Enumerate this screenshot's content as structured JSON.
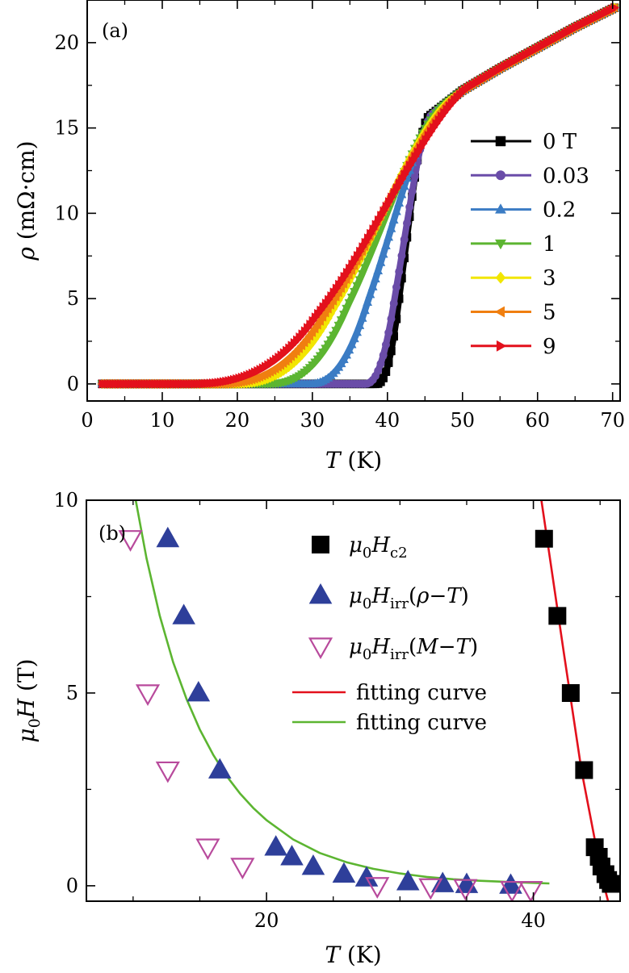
{
  "figure": {
    "panel_a_label": "(a)",
    "panel_b_label": "(b)"
  },
  "chart_data": [
    {
      "type": "line",
      "panel": "(a)",
      "xlabel": "T (K)",
      "ylabel": "ρ (mΩ·cm)",
      "xlim": [
        0,
        71
      ],
      "ylim": [
        -1,
        22.5
      ],
      "xticks": [
        0,
        10,
        20,
        30,
        40,
        50,
        60,
        70
      ],
      "yticks": [
        0,
        5,
        10,
        15,
        20
      ],
      "legend_position": "right",
      "normal_state": {
        "T": [
          45,
          50,
          55,
          60,
          65,
          70.5
        ],
        "rho": [
          15.5,
          17.2,
          18.5,
          19.7,
          20.9,
          22.1
        ]
      },
      "series": [
        {
          "name": "0 T",
          "color": "#000000",
          "marker": "square",
          "T_onset": 38.5,
          "T_mid": 42.0,
          "width": 2.2,
          "normal_end": 45.5
        },
        {
          "name": "0.03",
          "color": "#6a4ca8",
          "marker": "circle",
          "T_onset": 37.0,
          "T_mid": 42.2,
          "width": 2.9,
          "normal_end": 46.0
        },
        {
          "name": "0.2",
          "color": "#3b7cc4",
          "marker": "triangle-up",
          "T_onset": 29.5,
          "T_mid": 40.0,
          "width": 4.8,
          "normal_end": 47.0
        },
        {
          "name": "1",
          "color": "#5cb531",
          "marker": "triangle-down",
          "T_onset": 24.0,
          "T_mid": 37.0,
          "width": 7.5,
          "normal_end": 47.5
        },
        {
          "name": "3",
          "color": "#f2e600",
          "marker": "diamond",
          "T_onset": 19.5,
          "T_mid": 34.5,
          "width": 9.5,
          "normal_end": 48.5
        },
        {
          "name": "5",
          "color": "#f07f10",
          "marker": "triangle-left",
          "T_onset": 17.0,
          "T_mid": 32.5,
          "width": 10.5,
          "normal_end": 49.5
        },
        {
          "name": "9",
          "color": "#e3101c",
          "marker": "triangle-right",
          "T_onset": 13.5,
          "T_mid": 29.5,
          "width": 12.0,
          "normal_end": 51.0
        }
      ]
    },
    {
      "type": "scatter",
      "panel": "(b)",
      "xlabel": "T (K)",
      "ylabel": "μ0H (T)",
      "xlim": [
        6.5,
        46.5
      ],
      "ylim": [
        -0.4,
        10
      ],
      "xticks": [
        20,
        40
      ],
      "yticks": [
        0,
        5,
        10
      ],
      "legend_position": "top-right",
      "series": [
        {
          "name": "μ0Hc2",
          "label_base": "μ",
          "label_sub0": "0",
          "label_var": "H",
          "label_sub": "c2",
          "label_tail": "",
          "marker": "square",
          "color": "#000000",
          "points": [
            [
              40.8,
              9
            ],
            [
              41.8,
              7
            ],
            [
              42.8,
              5
            ],
            [
              43.8,
              3
            ],
            [
              44.6,
              1
            ],
            [
              44.9,
              0.75
            ],
            [
              45.1,
              0.5
            ],
            [
              45.4,
              0.3
            ],
            [
              45.6,
              0.15
            ],
            [
              45.8,
              0.05
            ]
          ]
        },
        {
          "name": "μ0Hirr(ρ−T)",
          "label_base": "μ",
          "label_sub0": "0",
          "label_var": "H",
          "label_sub": "irr",
          "label_tail": "(ρ−T)",
          "marker": "triangle-up",
          "color": "#2e3f9a",
          "points": [
            [
              12.6,
              9
            ],
            [
              13.8,
              7
            ],
            [
              14.9,
              5
            ],
            [
              16.5,
              3
            ],
            [
              20.7,
              1
            ],
            [
              21.9,
              0.75
            ],
            [
              23.5,
              0.5
            ],
            [
              25.8,
              0.3
            ],
            [
              27.5,
              0.2
            ],
            [
              30.6,
              0.1
            ],
            [
              33.2,
              0.05
            ],
            [
              35.0,
              0.03
            ],
            [
              38.3,
              0.01
            ]
          ]
        },
        {
          "name": "μ0Hirr(M−T)",
          "label_base": "μ",
          "label_sub0": "0",
          "label_var": "H",
          "label_sub": "irr",
          "label_tail": "(M−T)",
          "marker": "triangle-down-open",
          "color": "#b84a9c",
          "points": [
            [
              9.8,
              9
            ],
            [
              11.1,
              5
            ],
            [
              12.6,
              3
            ],
            [
              15.6,
              1
            ],
            [
              18.2,
              0.5
            ],
            [
              28.3,
              0
            ],
            [
              32.3,
              -0.03
            ],
            [
              34.9,
              -0.05
            ],
            [
              38.4,
              -0.1
            ],
            [
              39.8,
              -0.1
            ]
          ]
        },
        {
          "name": "fitting curve",
          "marker": "line",
          "color": "#e3101c",
          "points": [
            [
              40.6,
              10
            ],
            [
              42.3,
              6
            ],
            [
              43.6,
              3
            ],
            [
              44.6,
              1.2
            ],
            [
              45.3,
              0
            ],
            [
              45.6,
              -0.4
            ]
          ]
        },
        {
          "name": "fitting curve",
          "marker": "line",
          "color": "#5cb531",
          "points": [
            [
              10.2,
              10
            ],
            [
              11,
              8.5
            ],
            [
              12,
              7
            ],
            [
              13,
              5.8
            ],
            [
              14,
              4.85
            ],
            [
              15,
              4.05
            ],
            [
              16,
              3.4
            ],
            [
              17,
              2.85
            ],
            [
              18,
              2.4
            ],
            [
              19,
              2.02
            ],
            [
              20,
              1.7
            ],
            [
              22,
              1.2
            ],
            [
              24,
              0.85
            ],
            [
              26,
              0.61
            ],
            [
              28,
              0.44
            ],
            [
              30,
              0.32
            ],
            [
              32,
              0.23
            ],
            [
              34,
              0.17
            ],
            [
              36,
              0.13
            ],
            [
              38,
              0.1
            ],
            [
              40,
              0.075
            ],
            [
              41.2,
              0.06
            ]
          ]
        }
      ]
    }
  ]
}
